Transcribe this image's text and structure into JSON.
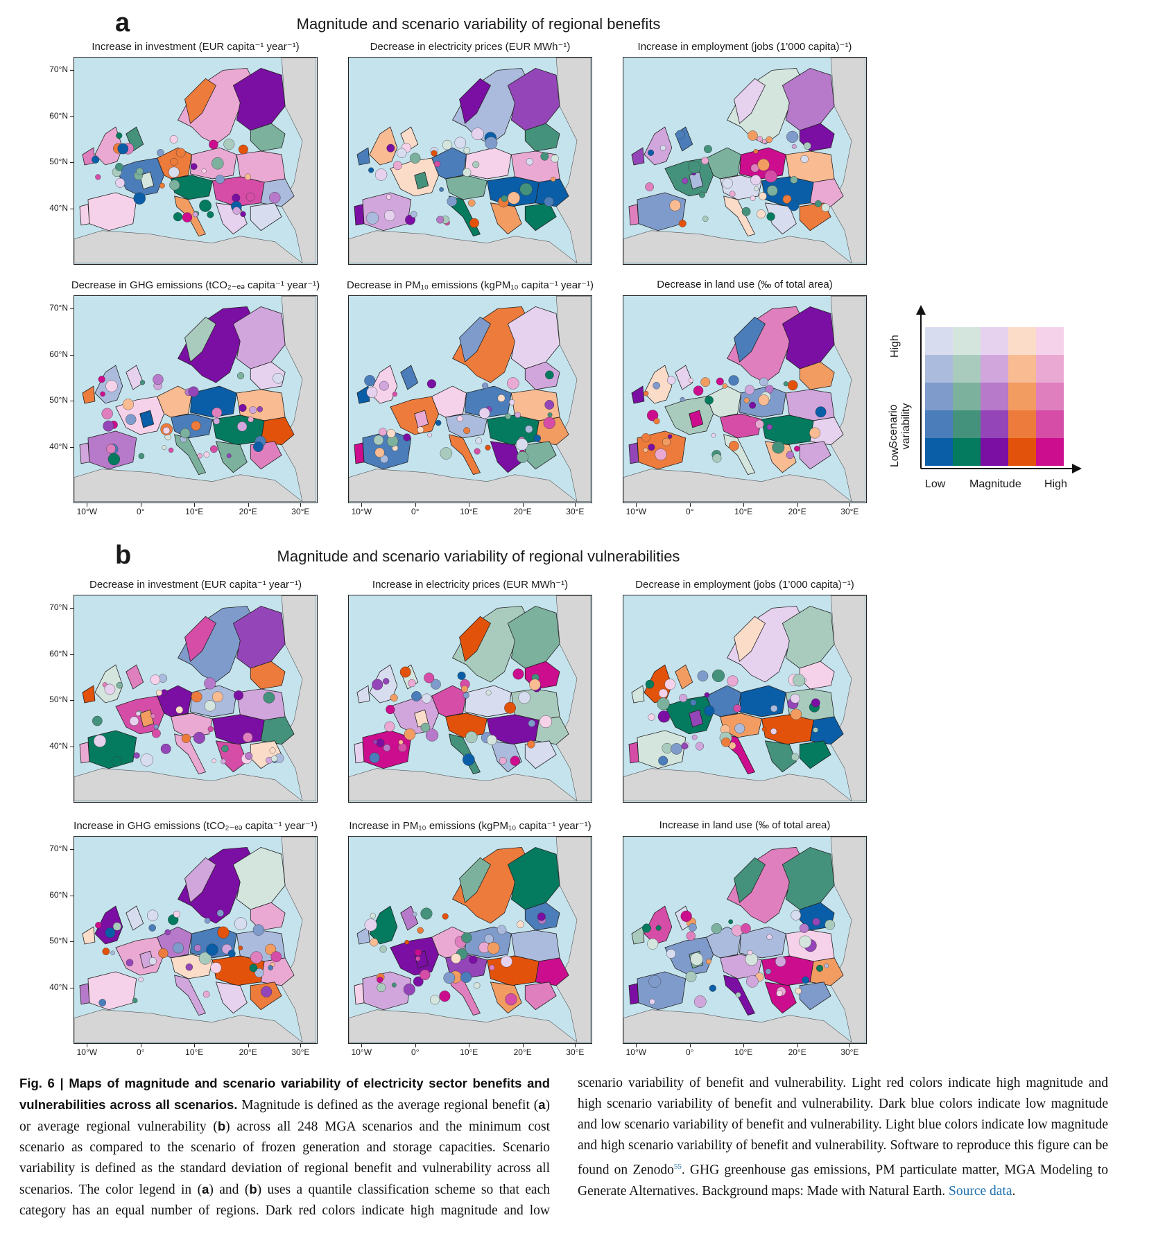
{
  "panel_a": {
    "letter": "a",
    "title": "Magnitude and scenario variability of regional benefits",
    "maps": [
      {
        "title": "Increase in investment (EUR capita⁻¹ year⁻¹)"
      },
      {
        "title": "Decrease in electricity prices (EUR MWh⁻¹)"
      },
      {
        "title": "Increase in employment (jobs (1’000 capita)⁻¹)"
      },
      {
        "title": "Decrease in GHG emissions (tCO₂₋ₑₔ capita⁻¹ year⁻¹)"
      },
      {
        "title": "Decrease in PM₁₀ emissions (kgPM₁₀ capita⁻¹ year⁻¹)"
      },
      {
        "title": "Decrease in land use (‰ of total area)"
      }
    ]
  },
  "panel_b": {
    "letter": "b",
    "title": "Magnitude and scenario variability of regional vulnerabilities",
    "maps": [
      {
        "title": "Decrease in investment (EUR capita⁻¹ year⁻¹)"
      },
      {
        "title": "Increase in electricity prices (EUR MWh⁻¹)"
      },
      {
        "title": "Decrease in employment (jobs (1’000 capita)⁻¹)"
      },
      {
        "title": "Increase in GHG emissions (tCO₂₋ₑₔ capita⁻¹ year⁻¹)"
      },
      {
        "title": "Increase in PM₁₀ emissions (kgPM₁₀ capita⁻¹ year⁻¹)"
      },
      {
        "title": "Increase in land use (‰ of total area)"
      }
    ]
  },
  "axes": {
    "lat_ticks": [
      "70°N",
      "60°N",
      "50°N",
      "40°N"
    ],
    "lon_ticks": [
      "10°W",
      "0°",
      "10°E",
      "20°E",
      "30°E"
    ]
  },
  "legend": {
    "y_high": "High",
    "y_low": "Low",
    "y_title": "Scenario variability",
    "x_low": "Low",
    "x_title": "Magnitude",
    "x_high": "High",
    "colors": [
      [
        "#d8dcef",
        "#d4e5de",
        "#e6d2ef",
        "#fbdcc9",
        "#f6d2ea"
      ],
      [
        "#abbbdd",
        "#a9cbbd",
        "#d1a6dc",
        "#f9bb92",
        "#eaa9d3"
      ],
      [
        "#7f9bcb",
        "#7cb19e",
        "#b779c9",
        "#f29c62",
        "#df7fbe"
      ],
      [
        "#4a7db9",
        "#44927b",
        "#9445b8",
        "#ed7b3b",
        "#d54da7"
      ],
      [
        "#0a5ea7",
        "#047a5e",
        "#7b0fa3",
        "#e3520a",
        "#cc0d8d"
      ]
    ]
  },
  "map_colors": {
    "sea": "#c5e3ed",
    "land_outside": "#d6d6d6"
  },
  "caption": {
    "fig_label": "Fig. 6 | Maps of magnitude and scenario variability of electricity sector benefits and vulnerabilities across all scenarios.",
    "text_1": " Magnitude is defined as the average regional benefit (",
    "a": "a",
    "text_2": ") or average regional vulnerability (",
    "b": "b",
    "text_3": ") across all 248 MGA scenarios and the minimum cost scenario as compared to the scenario of frozen generation and storage capacities. Scenario variability is defined as the standard deviation of regional benefit and vulnerability across all scenarios. The color legend in (",
    "a2": "a",
    "text_4": ") and (",
    "b2": "b",
    "text_5": ") uses a quantile classification scheme so that each category has an equal number of regions. Dark red colors indicate high magnitude and low scenario variability of benefit and vulnerability. Light red colors indicate high magnitude and high scenario variability of benefit and vulnerability. Dark blue colors indicate low magnitude and low scenario variability of benefit and vulnerability. Light blue colors indicate low magnitude and high scenario variability of benefit and vulnerability. Software to reproduce this figure can be found on Zenodo",
    "ref": "55",
    "text_6": ". GHG greenhouse gas emissions, PM particulate matter, MGA Modeling to Generate Alternatives. Background maps: Made with Natural Earth. ",
    "source_link": "Source data",
    "text_7": "."
  }
}
